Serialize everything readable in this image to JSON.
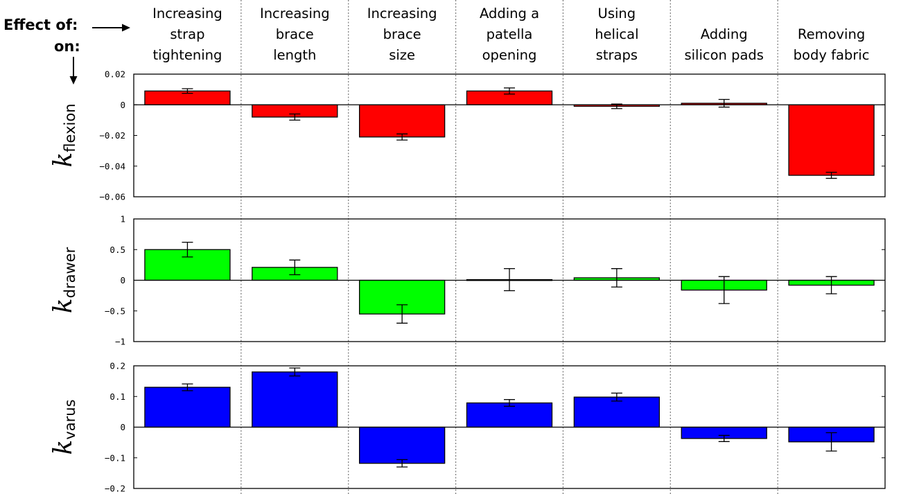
{
  "header": {
    "effect_of_label": "Effect of:",
    "on_label": "on:"
  },
  "chart_data": {
    "type": "bar",
    "categories": [
      [
        "Increasing",
        "strap",
        "tightening"
      ],
      [
        "Increasing",
        "brace",
        "length"
      ],
      [
        "Increasing",
        "brace",
        "size"
      ],
      [
        "Adding a",
        "patella",
        "opening"
      ],
      [
        "Using",
        "helical",
        "straps"
      ],
      [
        "Adding",
        "silicon pads"
      ],
      [
        "Removing",
        "body fabric"
      ]
    ],
    "panels": [
      {
        "ylabel_main": "k",
        "ylabel_sub": "flexion",
        "color": "#ff0000",
        "ylim": [
          -0.06,
          0.02
        ],
        "yticks": [
          0.02,
          0,
          -0.02,
          -0.04,
          -0.06
        ],
        "ytick_labels": [
          "0.02",
          "0",
          "−0.02",
          "−0.04",
          "−0.06"
        ],
        "values": [
          0.009,
          -0.008,
          -0.021,
          0.009,
          -0.001,
          0.001,
          -0.046
        ],
        "errors": [
          0.0015,
          0.002,
          0.002,
          0.002,
          0.0015,
          0.0025,
          0.002
        ]
      },
      {
        "ylabel_main": "k",
        "ylabel_sub": "drawer",
        "color": "#00ff00",
        "ylim": [
          -1,
          1
        ],
        "yticks": [
          1,
          0.5,
          0,
          -0.5,
          -1
        ],
        "ytick_labels": [
          "1",
          "0.5",
          "0",
          "−0.5",
          "−1"
        ],
        "values": [
          0.5,
          0.21,
          -0.55,
          0.01,
          0.04,
          -0.16,
          -0.08
        ],
        "errors": [
          0.12,
          0.12,
          0.15,
          0.18,
          0.15,
          0.22,
          0.14
        ]
      },
      {
        "ylabel_main": "k",
        "ylabel_sub": "varus",
        "color": "#0000ff",
        "ylim": [
          -0.2,
          0.2
        ],
        "yticks": [
          0.2,
          0.1,
          0,
          -0.1,
          -0.2
        ],
        "ytick_labels": [
          "0.2",
          "0.1",
          "0",
          "−0.1",
          "−0.2"
        ],
        "values": [
          0.13,
          0.18,
          -0.118,
          0.079,
          0.098,
          -0.037,
          -0.048
        ],
        "errors": [
          0.011,
          0.013,
          0.012,
          0.011,
          0.013,
          0.01,
          0.03
        ]
      }
    ],
    "grid": false
  }
}
